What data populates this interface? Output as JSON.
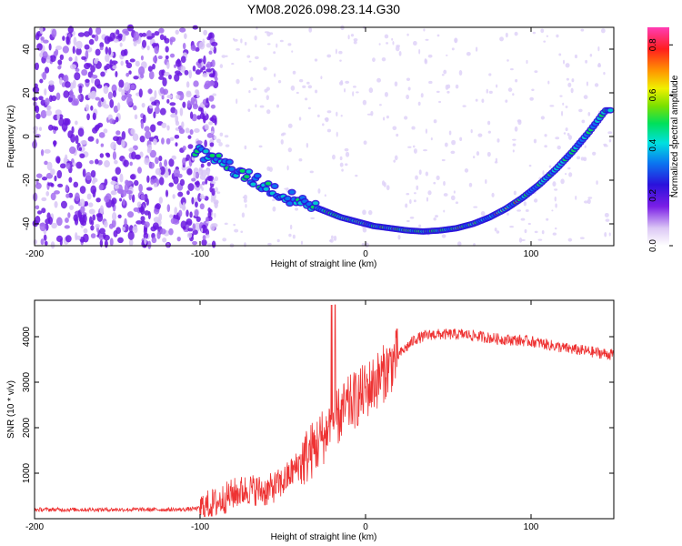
{
  "title": "YM08.2026.098.23.14.G30",
  "chart_data": [
    {
      "type": "heatmap",
      "xlabel": "Height of straight line (km)",
      "ylabel": "Frequency (Hz)",
      "xlim": [
        -200,
        150
      ],
      "ylim": [
        -50,
        50
      ],
      "xticks": [
        -200,
        -100,
        0,
        100
      ],
      "yticks": [
        -40,
        -20,
        0,
        20,
        40
      ],
      "colorbar": {
        "label": "Normalized spectral amplitude",
        "range": [
          0,
          0.87
        ],
        "ticks": [
          0,
          0.2,
          0.4,
          0.6,
          0.8
        ]
      },
      "ridge": {
        "description_points_x": [
          -103,
          -95,
          -85,
          -75,
          -65,
          -55,
          -45,
          -35,
          -25,
          -15,
          -5,
          5,
          15,
          25,
          35,
          45,
          55,
          65,
          75,
          85,
          95,
          105,
          115,
          125,
          135,
          145
        ],
        "description_points_y": [
          -6,
          -9,
          -13,
          -17,
          -21,
          -25,
          -28,
          -31,
          -34,
          -37,
          -39,
          -41,
          -42,
          -43,
          -43.5,
          -43,
          -42,
          -40,
          -37,
          -33,
          -28,
          -22,
          -15,
          -7,
          2,
          12
        ]
      }
    },
    {
      "type": "line",
      "xlabel": "Height of straight line (km)",
      "ylabel": "SNR (10 * v/v)",
      "xlim": [
        -200,
        150
      ],
      "ylim": [
        0,
        4800
      ],
      "xticks": [
        -200,
        -100,
        0,
        100
      ],
      "yticks": [
        1000,
        2000,
        3000,
        4000
      ],
      "color": "#ee3333",
      "trend_x": [
        -200,
        -150,
        -110,
        -100,
        -90,
        -80,
        -70,
        -60,
        -50,
        -40,
        -30,
        -20,
        -10,
        0,
        10,
        20,
        30,
        40,
        60,
        80,
        100,
        120,
        150
      ],
      "trend_y": [
        200,
        200,
        200,
        230,
        350,
        550,
        650,
        600,
        800,
        1200,
        1600,
        2100,
        2500,
        2800,
        3150,
        3600,
        3950,
        4050,
        4050,
        3950,
        3900,
        3750,
        3600
      ]
    }
  ]
}
